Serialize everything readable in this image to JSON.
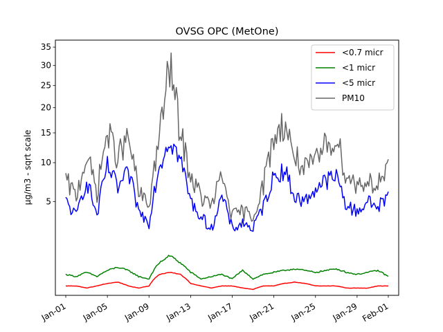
{
  "chart_data": {
    "type": "line",
    "title": "OVSG OPC (MetOne)",
    "xlabel": "",
    "ylabel": "µg/m3 - sqrt scale",
    "yscale": "sqrt",
    "ylim": [
      0,
      37
    ],
    "xlim": [
      "2016-12-31",
      "2017-02-02"
    ],
    "yticks": [
      5,
      10,
      15,
      20,
      25,
      30,
      35
    ],
    "xticks": [
      {
        "date": "2017-01-01",
        "label": "Jan-01"
      },
      {
        "date": "2017-01-05",
        "label": "Jan-05"
      },
      {
        "date": "2017-01-09",
        "label": "Jan-09"
      },
      {
        "date": "2017-01-13",
        "label": "Jan-13"
      },
      {
        "date": "2017-01-17",
        "label": "Jan-17"
      },
      {
        "date": "2017-01-21",
        "label": "Jan-21"
      },
      {
        "date": "2017-01-25",
        "label": "Jan-25"
      },
      {
        "date": "2017-01-29",
        "label": "Jan-29"
      },
      {
        "date": "2017-02-01",
        "label": "Feb-01"
      }
    ],
    "grid": false,
    "legend_position": "top-right",
    "x": [
      "2017-01-01",
      "2017-01-02",
      "2017-01-03",
      "2017-01-04",
      "2017-01-05",
      "2017-01-06",
      "2017-01-07",
      "2017-01-08",
      "2017-01-09",
      "2017-01-10",
      "2017-01-11",
      "2017-01-12",
      "2017-01-13",
      "2017-01-14",
      "2017-01-15",
      "2017-01-16",
      "2017-01-17",
      "2017-01-18",
      "2017-01-19",
      "2017-01-20",
      "2017-01-21",
      "2017-01-22",
      "2017-01-23",
      "2017-01-24",
      "2017-01-25",
      "2017-01-26",
      "2017-01-27",
      "2017-01-28",
      "2017-01-29",
      "2017-01-30",
      "2017-01-31",
      "2017-02-01"
    ],
    "series": [
      {
        "name": "<0.7 micr",
        "color": "#ff0000",
        "values": [
          0.05,
          0.05,
          0.03,
          0.05,
          0.08,
          0.1,
          0.05,
          0.03,
          0.05,
          0.25,
          0.3,
          0.25,
          0.08,
          0.05,
          0.03,
          0.05,
          0.05,
          0.03,
          0.02,
          0.05,
          0.05,
          0.08,
          0.1,
          0.08,
          0.05,
          0.05,
          0.05,
          0.03,
          0.03,
          0.03,
          0.05,
          0.05
        ]
      },
      {
        "name": "<1 micr",
        "color": "#008000",
        "values": [
          0.25,
          0.2,
          0.3,
          0.2,
          0.35,
          0.45,
          0.35,
          0.2,
          0.15,
          0.6,
          0.9,
          0.6,
          0.3,
          0.15,
          0.2,
          0.25,
          0.15,
          0.35,
          0.15,
          0.25,
          0.3,
          0.35,
          0.4,
          0.35,
          0.3,
          0.35,
          0.4,
          0.3,
          0.25,
          0.3,
          0.35,
          0.2
        ]
      },
      {
        "name": "<5 micr",
        "color": "#0000ff",
        "values": [
          5,
          3.5,
          7.5,
          3.5,
          9.5,
          6.5,
          8.5,
          4,
          3,
          9.5,
          14,
          10.5,
          5,
          3.5,
          2.5,
          5.5,
          2.5,
          3,
          2.5,
          4.5,
          8,
          9,
          5.5,
          5,
          6.5,
          7.5,
          8,
          4.5,
          4,
          5,
          4.5,
          5.5
        ]
      },
      {
        "name": "PM10",
        "color": "#666666",
        "values": [
          7.5,
          5.5,
          11,
          6,
          15,
          11,
          14,
          6,
          4.5,
          14,
          30,
          15,
          8,
          5.5,
          4.5,
          8,
          3.5,
          4,
          3.5,
          7,
          14,
          17,
          11,
          9,
          10,
          13,
          14,
          8,
          7,
          7.5,
          7,
          9
        ]
      }
    ]
  }
}
